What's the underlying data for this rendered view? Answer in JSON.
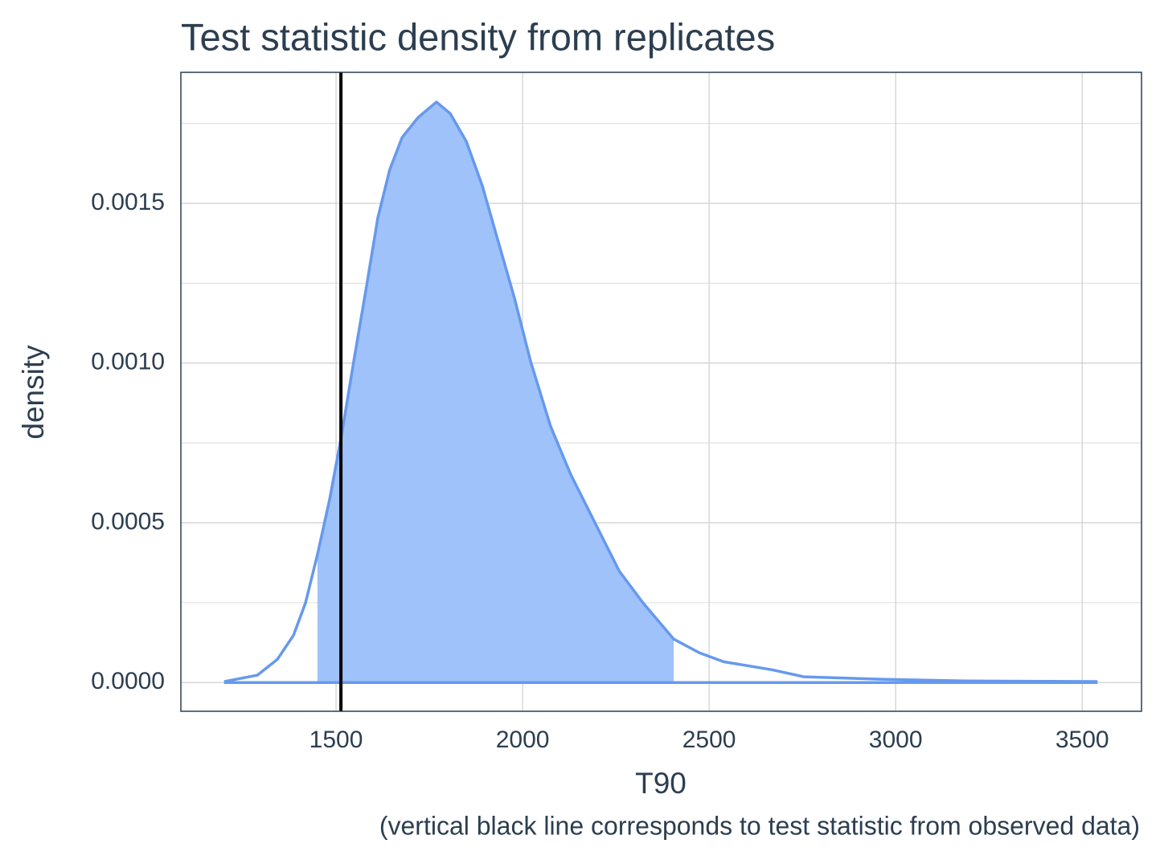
{
  "chart_data": {
    "type": "density",
    "title": "Test statistic density from replicates",
    "x_label": "T90",
    "y_label": "density",
    "caption": "(vertical black line corresponds to test statistic from observed data)",
    "x": [
      1200,
      1289,
      1343,
      1386,
      1418,
      1450,
      1483,
      1515,
      1547,
      1580,
      1612,
      1644,
      1677,
      1720,
      1769,
      1806,
      1849,
      1892,
      1935,
      1978,
      2022,
      2075,
      2129,
      2194,
      2259,
      2323,
      2405,
      2474,
      2539,
      2668,
      2754,
      2970,
      3185,
      3541
    ],
    "values": [
      3e-06,
      2.3e-05,
      7.3e-05,
      0.000148,
      0.000249,
      0.0004,
      0.000575,
      0.000776,
      0.001003,
      0.001229,
      0.001455,
      0.001606,
      0.001706,
      0.001769,
      0.001817,
      0.001781,
      0.001694,
      0.001555,
      0.001379,
      0.001204,
      0.001003,
      0.000802,
      0.000651,
      0.0005,
      0.000349,
      0.000249,
      0.000136,
      9.3e-05,
      6.5e-05,
      4e-05,
      1.8e-05,
      1e-05,
      5e-06,
      3e-06
    ],
    "color": "#6699ee",
    "fill_color": "#a0c2fa",
    "shade_range": [
      1450,
      2405
    ],
    "vline": 1513,
    "vline_color": "#000000",
    "xlim": [
      1084,
      3659
    ],
    "ylim": [
      -9e-05,
      0.00191
    ],
    "xticks": [
      1500,
      2000,
      2500,
      3000,
      3500
    ],
    "yticks": [
      {
        "value": 0,
        "label": "0.0000"
      },
      {
        "value": 0.0005,
        "label": "0.0005"
      },
      {
        "value": 0.001,
        "label": "0.0010"
      },
      {
        "value": 0.0015,
        "label": "0.0015"
      }
    ],
    "y_minor_ticks": [
      0.00025,
      0.00075,
      0.00125,
      0.00175
    ],
    "grid": true
  }
}
